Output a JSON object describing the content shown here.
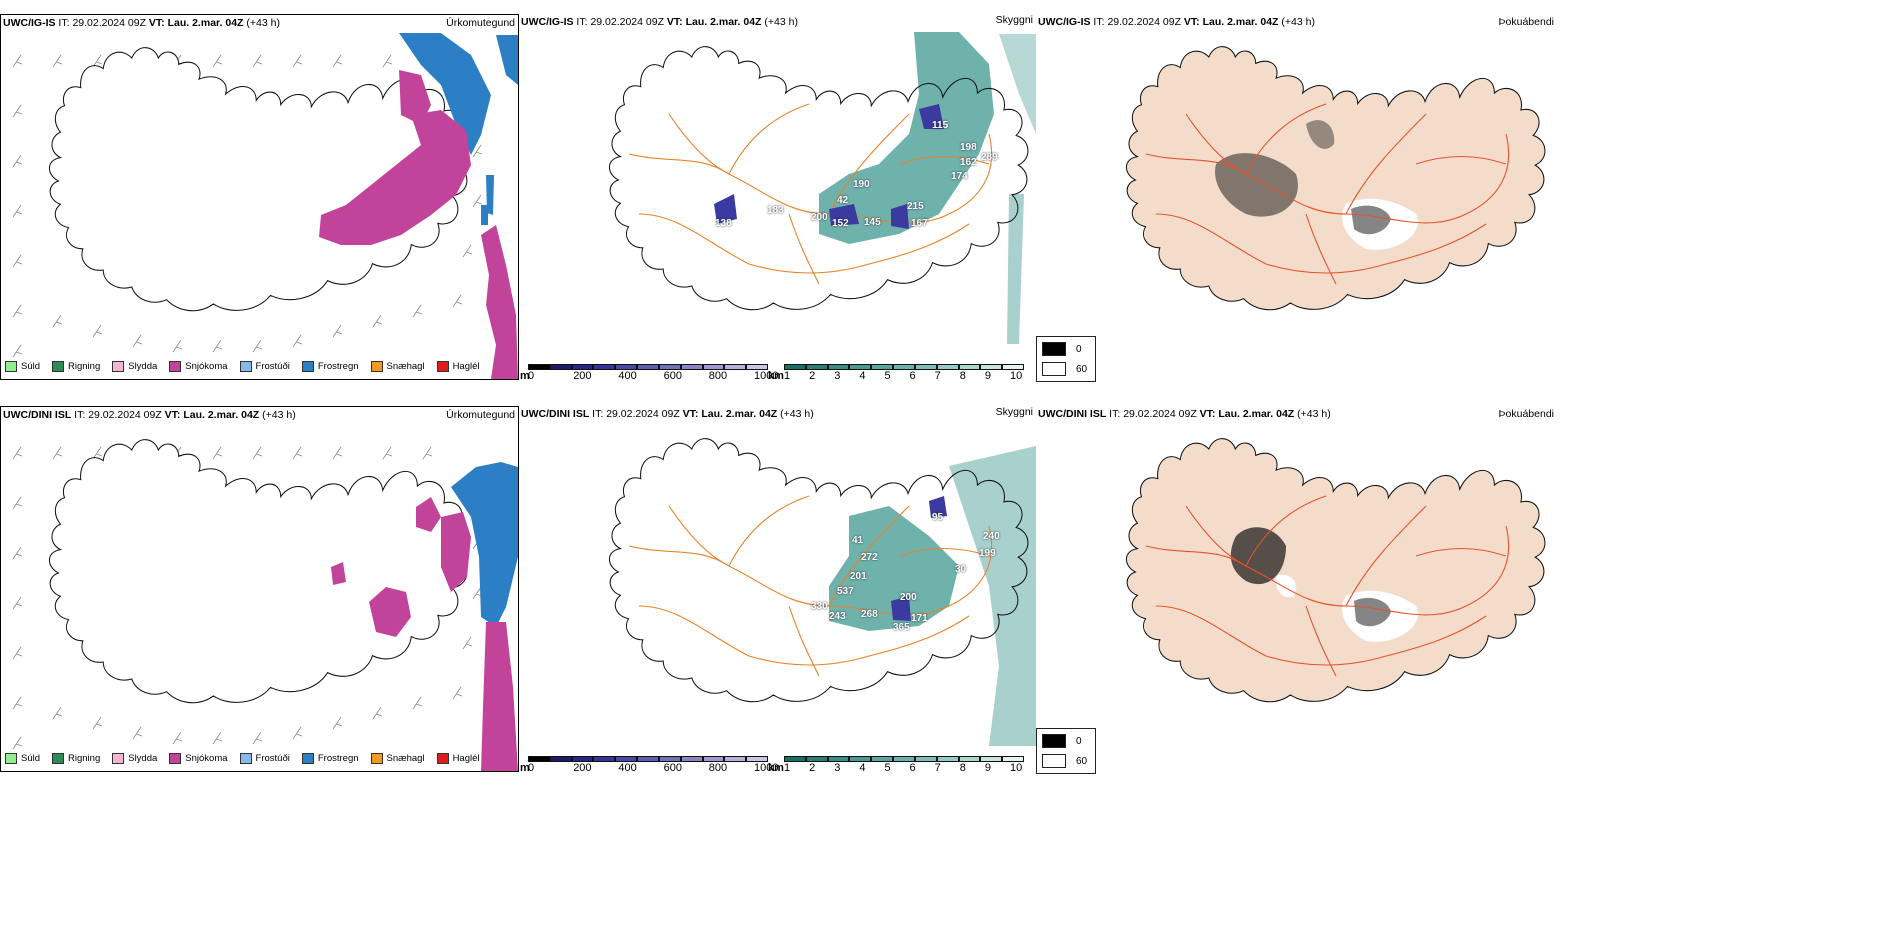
{
  "rows": [
    {
      "id": "igis",
      "model": "UWC/IG-IS",
      "it_label": "IT:",
      "it_value": "29.02.2024 09Z",
      "vt_label": "VT:",
      "vt_value": "Lau. 2.mar. 04Z",
      "lead": "(+43 h)",
      "ceiling_labels": [
        {
          "t": "115"
        },
        {
          "t": "198"
        },
        {
          "t": "162"
        },
        {
          "t": "289"
        },
        {
          "t": "174"
        },
        {
          "t": "190"
        },
        {
          "t": "42"
        },
        {
          "t": "215"
        },
        {
          "t": "200"
        },
        {
          "t": "152"
        },
        {
          "t": "145"
        },
        {
          "t": "167"
        },
        {
          "t": "183"
        },
        {
          "t": "138"
        }
      ]
    },
    {
      "id": "dini",
      "model": "UWC/DINI ISL",
      "it_label": "IT:",
      "it_value": "29.02.2024 09Z",
      "vt_label": "VT:",
      "vt_value": "Lau. 2.mar. 04Z",
      "lead": "(+43 h)",
      "ceiling_labels": [
        {
          "t": "95"
        },
        {
          "t": "240"
        },
        {
          "t": "199"
        },
        {
          "t": "30"
        },
        {
          "t": "41"
        },
        {
          "t": "272"
        },
        {
          "t": "201"
        },
        {
          "t": "537"
        },
        {
          "t": "200"
        },
        {
          "t": "330"
        },
        {
          "t": "243"
        },
        {
          "t": "268"
        },
        {
          "t": "171"
        },
        {
          "t": "365"
        }
      ]
    }
  ],
  "fields": {
    "precip": "Úrkomutegund",
    "cloud": "Skyggni",
    "fog": "Þokuábendi"
  },
  "precip_legend": [
    {
      "label": "Súld",
      "color": "#90ee90"
    },
    {
      "label": "Rigning",
      "color": "#2e8b57"
    },
    {
      "label": "Slydda",
      "color": "#f4b6d2"
    },
    {
      "label": "Snjókoma",
      "color": "#c2449a"
    },
    {
      "label": "Frostúði",
      "color": "#87b8ea"
    },
    {
      "label": "Frostregn",
      "color": "#2c7fc4"
    },
    {
      "label": "Snæhagl",
      "color": "#f39a1e"
    },
    {
      "label": "Haglél",
      "color": "#e01b1b"
    }
  ],
  "cloud_base_scale": {
    "unit": "m",
    "ticks": [
      "0",
      "200",
      "400",
      "600",
      "800",
      "1000"
    ],
    "colors": [
      "#000000",
      "#1a1a6e",
      "#26268c",
      "#34349e",
      "#4848a8",
      "#5c5cb2",
      "#7070bc",
      "#8686c6",
      "#9c9cd0",
      "#b2b2da",
      "#c8c8e6"
    ]
  },
  "visibility_scale": {
    "unit": "km",
    "ticks": [
      "1",
      "2",
      "3",
      "4",
      "5",
      "6",
      "7",
      "8",
      "9",
      "10"
    ],
    "colors": [
      "#1a6e66",
      "#2a7e76",
      "#3a8e86",
      "#4a9a92",
      "#5aa69e",
      "#6cb2aa",
      "#80beb6",
      "#96cac4",
      "#aed6d0",
      "#c8e4e0",
      "#e6f2f0"
    ]
  },
  "fog_legend": [
    {
      "label": "0",
      "color": "#000000"
    },
    {
      "label": "60",
      "color": "#ffffff"
    }
  ],
  "colors": {
    "coast": "#111111",
    "roads": "#e8832a",
    "rivers": "#7a8ee8",
    "land_fog": "#f4dccb",
    "snow": "#c2449a",
    "frz": "#2c7fc4",
    "ceil": "#3a3aa0",
    "vis": "#3f9890"
  }
}
